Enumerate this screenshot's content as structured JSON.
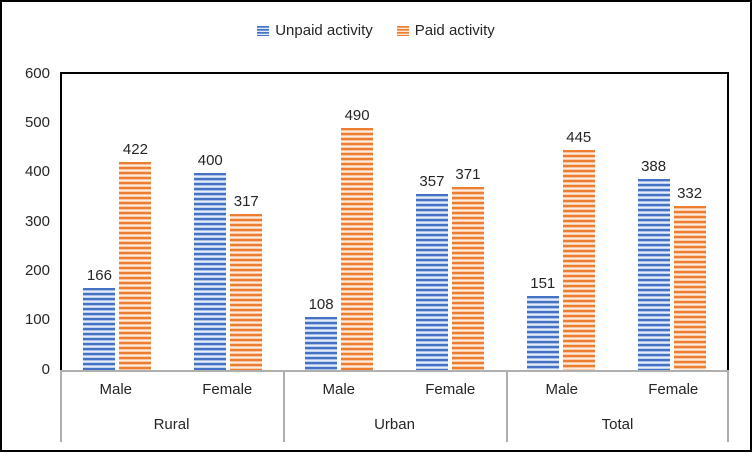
{
  "chart_data": {
    "type": "bar",
    "title": "",
    "groups": [
      "Rural",
      "Urban",
      "Total"
    ],
    "categories": [
      "Male",
      "Female"
    ],
    "series": [
      {
        "name": "Unpaid activity",
        "color": "#4472C4",
        "light_color": "#AEC3E8",
        "values": [
          166,
          400,
          108,
          357,
          151,
          388
        ]
      },
      {
        "name": "Paid activity",
        "color": "#ED7D31",
        "light_color": "#F6BE93",
        "values": [
          422,
          317,
          490,
          371,
          445,
          332
        ]
      }
    ],
    "y_axis": {
      "min": 0,
      "max": 600,
      "step": 100,
      "ticks": [
        0,
        100,
        200,
        300,
        400,
        500,
        600
      ]
    },
    "legend_position": "top",
    "grid": false,
    "pattern": "horizontal-stripes",
    "axis_line_color": "#000000",
    "category_table_line_color": "#AFAFAF",
    "label_color": "#262626"
  },
  "legend": {
    "items": [
      {
        "label": "Unpaid activity"
      },
      {
        "label": "Paid activity"
      }
    ]
  }
}
